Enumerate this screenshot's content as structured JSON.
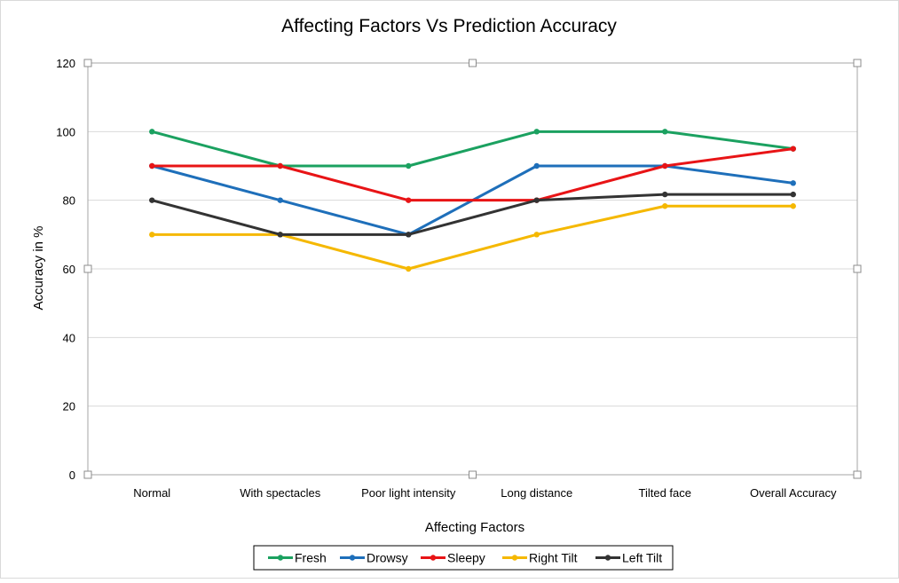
{
  "chart_data": {
    "type": "line",
    "title": "Affecting Factors Vs Prediction Accuracy",
    "xlabel": "Affecting Factors",
    "ylabel": "Accuracy in %",
    "ylim": [
      0,
      120
    ],
    "yticks": [
      0,
      20,
      40,
      60,
      80,
      100,
      120
    ],
    "grid": "horizontal",
    "legend_position": "bottom",
    "categories": [
      "Normal",
      "With spectacles",
      "Poor light intensity",
      "Long distance",
      "Tilted face",
      "Overall Accuracy"
    ],
    "series": [
      {
        "name": "Fresh",
        "color": "#1BA160",
        "values": [
          100,
          90,
          90,
          100,
          100,
          95
        ]
      },
      {
        "name": "Drowsy",
        "color": "#1E6FBA",
        "values": [
          90,
          80,
          70,
          90,
          90,
          85
        ]
      },
      {
        "name": "Sleepy",
        "color": "#E81416",
        "values": [
          90,
          90,
          80,
          80,
          90,
          95
        ]
      },
      {
        "name": "Right Tilt",
        "color": "#F5B800",
        "values": [
          70,
          70,
          60,
          70,
          78.3,
          78.3
        ]
      },
      {
        "name": "Left Tilt",
        "color": "#333333",
        "values": [
          80,
          70,
          70,
          80,
          81.7,
          81.7
        ]
      }
    ]
  }
}
